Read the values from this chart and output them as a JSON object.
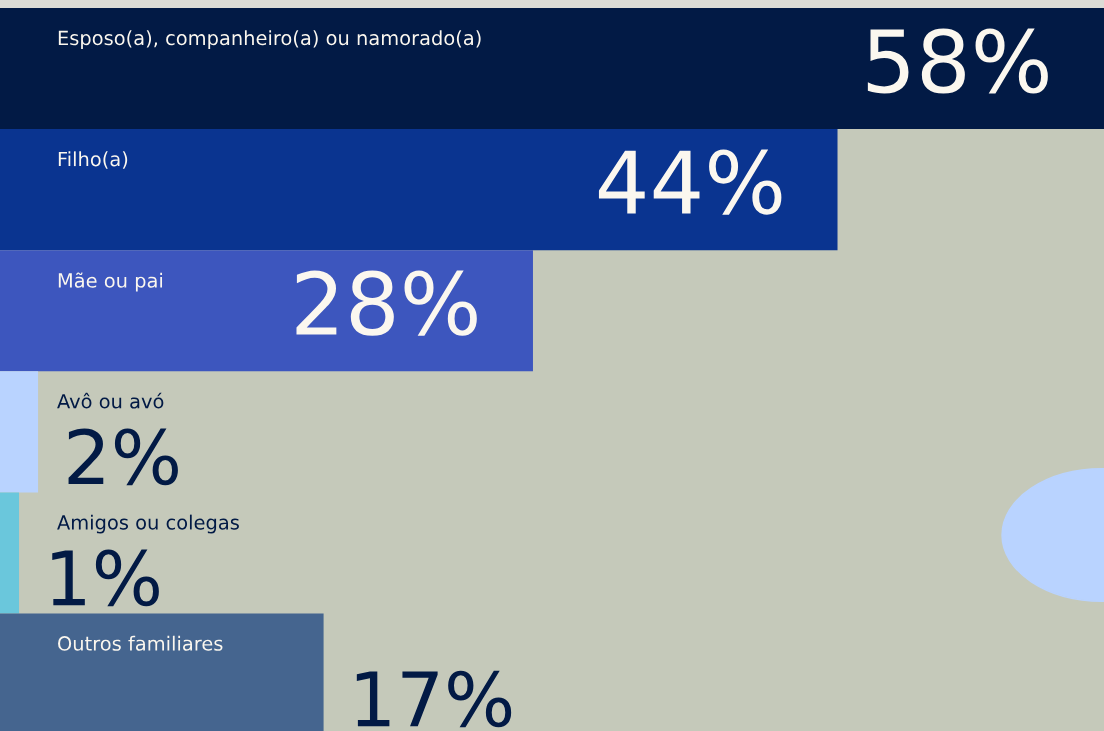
{
  "chart_data": {
    "type": "bar",
    "orientation": "horizontal",
    "data_labels": true,
    "categories": [
      "Esposo(a), companheiro(a) ou namorado(a)",
      "Filho(a)",
      "Mãe ou pai",
      "Avô ou avó",
      "Amigos ou colegas",
      "Outros familiares"
    ],
    "values": [
      58,
      44,
      28,
      2,
      1,
      17
    ],
    "colors": [
      "#021a45",
      "#0a3490",
      "#3d56be",
      "#b9d3ff",
      "#6ac7dc",
      "#45658f"
    ],
    "value_labels": [
      "58%",
      "44%",
      "28%",
      "2%",
      "1%",
      "17%"
    ]
  }
}
